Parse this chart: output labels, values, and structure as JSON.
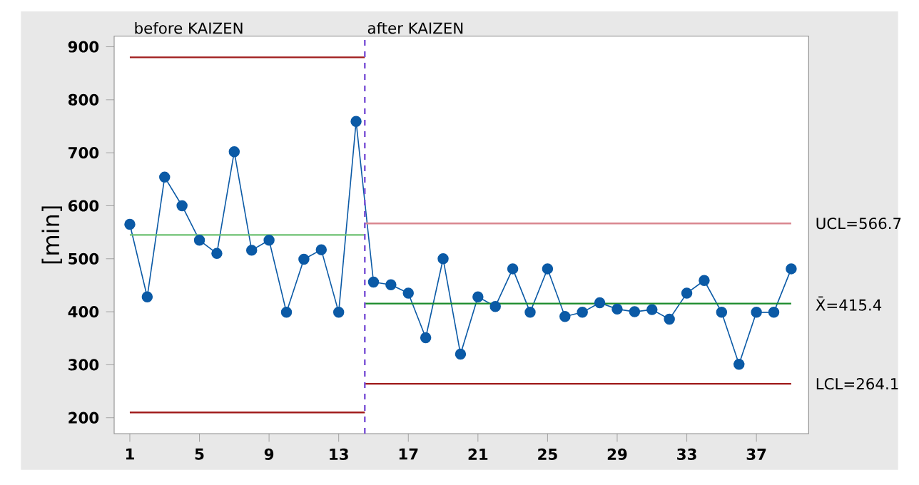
{
  "chart_data": {
    "type": "line",
    "ylabel": "[min]",
    "marker": "circle",
    "grid": false,
    "x": [
      1,
      2,
      3,
      4,
      5,
      6,
      7,
      8,
      9,
      10,
      11,
      12,
      13,
      14,
      15,
      16,
      17,
      18,
      19,
      20,
      21,
      22,
      23,
      24,
      25,
      26,
      27,
      28,
      29,
      30,
      31,
      32,
      33,
      34,
      35,
      36,
      37,
      38,
      39
    ],
    "xlim": [
      0.1,
      40
    ],
    "xticks": [
      1,
      5,
      9,
      13,
      17,
      21,
      25,
      29,
      33,
      37
    ],
    "ylim": [
      170,
      920
    ],
    "yticks": [
      200,
      300,
      400,
      500,
      600,
      700,
      800,
      900
    ],
    "series": [
      {
        "color": "#0b5aa6",
        "values": [
          565,
          428,
          654,
          600,
          535,
          510,
          702,
          516,
          535,
          399,
          499,
          517,
          399,
          759,
          456,
          451,
          435,
          351,
          500,
          320,
          428,
          410,
          481,
          399,
          481,
          391,
          399,
          417,
          405,
          400,
          404,
          386,
          435,
          459,
          399,
          301,
          399,
          399,
          481
        ]
      },
      {
        "type": "line",
        "marker": "none",
        "x": [
          1,
          14.5
        ],
        "values": [
          880,
          880
        ],
        "color": "#a01c1c"
      },
      {
        "type": "line",
        "marker": "none",
        "x": [
          1,
          14.5
        ],
        "values": [
          545,
          545
        ],
        "color": "#6cc070"
      },
      {
        "type": "line",
        "marker": "none",
        "x": [
          1,
          14.5
        ],
        "values": [
          210,
          210
        ],
        "color": "#a01c1c"
      },
      {
        "type": "line",
        "marker": "none",
        "x": [
          14.5,
          39
        ],
        "values": [
          566.7,
          566.7
        ],
        "color": "#d9868f",
        "name": "UCL=566.7"
      },
      {
        "type": "line",
        "marker": "none",
        "x": [
          14.5,
          39
        ],
        "values": [
          415.4,
          415.4
        ],
        "color": "#1a8a2a",
        "name": "X̄=415.4"
      },
      {
        "type": "line",
        "marker": "none",
        "x": [
          14.5,
          39
        ],
        "values": [
          264.1,
          264.1
        ],
        "color": "#a01c1c",
        "name": "LCL=264.1"
      }
    ],
    "ref_lines": [
      {
        "axis": "x",
        "value": 14.5,
        "color": "#7b52d6",
        "line_style": "dashed"
      }
    ],
    "annotations": [
      "before KAIZEN",
      "after KAIZEN"
    ]
  }
}
